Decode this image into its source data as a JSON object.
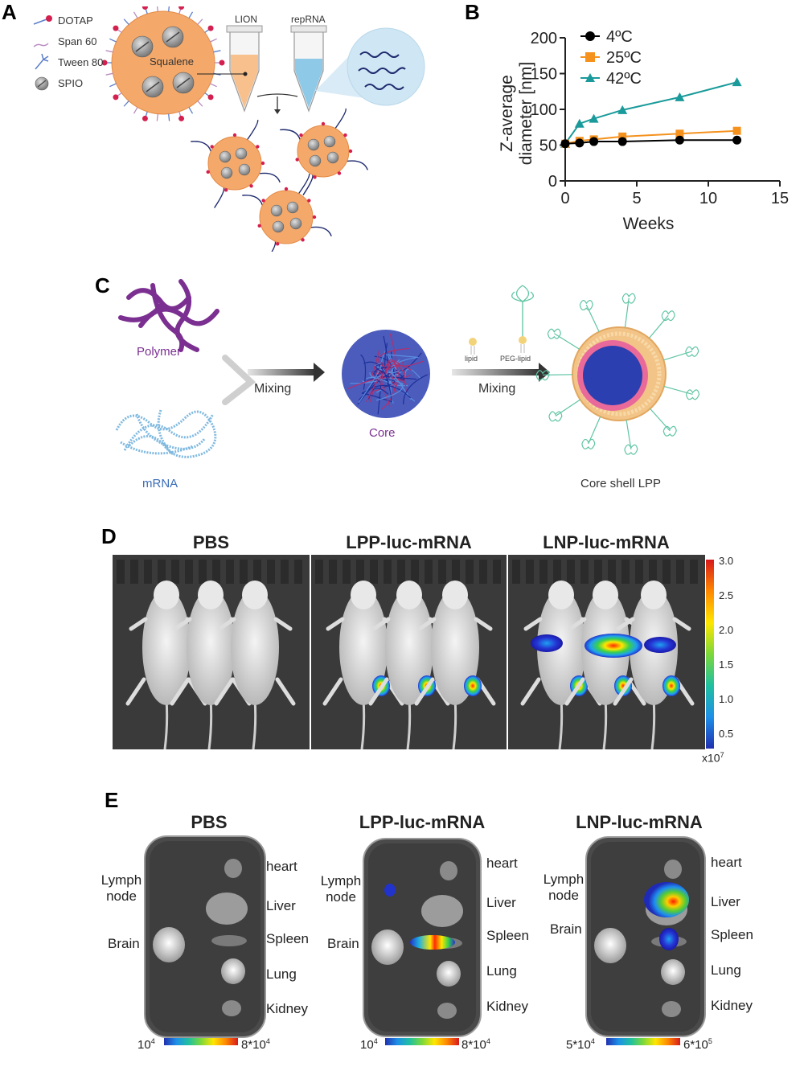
{
  "panels": {
    "A": {
      "letter": "A",
      "legend": [
        {
          "label": "DOTAP",
          "icon": "dotap-icon"
        },
        {
          "label": "Span 60",
          "icon": "span60-icon"
        },
        {
          "label": "Tween 80",
          "icon": "tween80-icon"
        },
        {
          "label": "SPIO",
          "icon": "spio-icon"
        }
      ],
      "core_label": "Squalene",
      "tube1_label": "LION",
      "tube2_label": "repRNA",
      "colors": {
        "particle": "#f4a96b",
        "dotap": "#d4204f",
        "tube_fill_lion": "#f7c08c",
        "tube_fill_rna": "#8fc9e8",
        "spio": "#9a9a9a"
      }
    },
    "B": {
      "letter": "B",
      "chart_data": {
        "type": "line",
        "title": "",
        "xlabel": "Weeks",
        "ylabel": "Z-average diameter [nm]",
        "ylabel_lines": [
          "Z-average",
          "diameter [nm]"
        ],
        "xlim": [
          0,
          15
        ],
        "ylim": [
          0,
          200
        ],
        "xticks": [
          0,
          5,
          10,
          15
        ],
        "yticks": [
          0,
          50,
          100,
          150,
          200
        ],
        "legend_position": "top-left",
        "series": [
          {
            "name": "4ºC",
            "color": "#000000",
            "marker": "circle",
            "x": [
              0,
              1,
              2,
              4,
              8,
              12
            ],
            "y": [
              52,
              53,
              55,
              55,
              57,
              57
            ]
          },
          {
            "name": "25ºC",
            "color": "#f5921e",
            "marker": "square",
            "x": [
              0,
              1,
              2,
              4,
              8,
              12
            ],
            "y": [
              52,
              56,
              58,
              62,
              66,
              70
            ]
          },
          {
            "name": "42ºC",
            "color": "#1a9a9a",
            "marker": "triangle",
            "x": [
              0,
              1,
              2,
              4,
              8,
              12
            ],
            "y": [
              52,
              80,
              87,
              99,
              117,
              138
            ]
          }
        ]
      }
    },
    "C": {
      "letter": "C",
      "polymer_label": "Polymer",
      "mrna_label": "mRNA",
      "mixing1_label": "Mixing",
      "core_label": "Core",
      "lipid_label": "lipid",
      "peg_lipid_label": "PEG-lipid",
      "mixing2_label": "Mixing",
      "lpp_label": "Core shell LPP",
      "colors": {
        "polymer": "#7b2f91",
        "mrna": "#7fb9e0",
        "core": "#2c3fb0",
        "peg": "#5fc4a4",
        "shell": "#f3c487"
      }
    },
    "D": {
      "letter": "D",
      "groups": [
        "PBS",
        "LPP-luc-mRNA",
        "LNP-luc-mRNA"
      ],
      "colorbar": {
        "ticks": [
          "3.0",
          "2.5",
          "2.0",
          "1.5",
          "1.0",
          "0.5"
        ],
        "unit": "x10",
        "unit_exp": "7"
      }
    },
    "E": {
      "letter": "E",
      "groups": [
        {
          "title": "PBS",
          "left_labels": [
            "Lymph node",
            "Brain"
          ],
          "right_labels": [
            "heart",
            "Liver",
            "Spleen",
            "Lung",
            "Kidney"
          ],
          "scale_min": "10",
          "scale_min_exp": "4",
          "scale_max": "8*10",
          "scale_max_exp": "4"
        },
        {
          "title": "LPP-luc-mRNA",
          "left_labels": [
            "Lymph node",
            "Brain"
          ],
          "right_labels": [
            "heart",
            "Liver",
            "Spleen",
            "Lung",
            "Kidney"
          ],
          "scale_min": "10",
          "scale_min_exp": "4",
          "scale_max": "8*10",
          "scale_max_exp": "4"
        },
        {
          "title": "LNP-luc-mRNA",
          "left_labels": [
            "Lymph node",
            "Brain"
          ],
          "right_labels": [
            "heart",
            "Liver",
            "Spleen",
            "Lung",
            "Kidney"
          ],
          "scale_min": "5*10",
          "scale_min_exp": "4",
          "scale_max": "6*10",
          "scale_max_exp": "5"
        }
      ]
    }
  }
}
